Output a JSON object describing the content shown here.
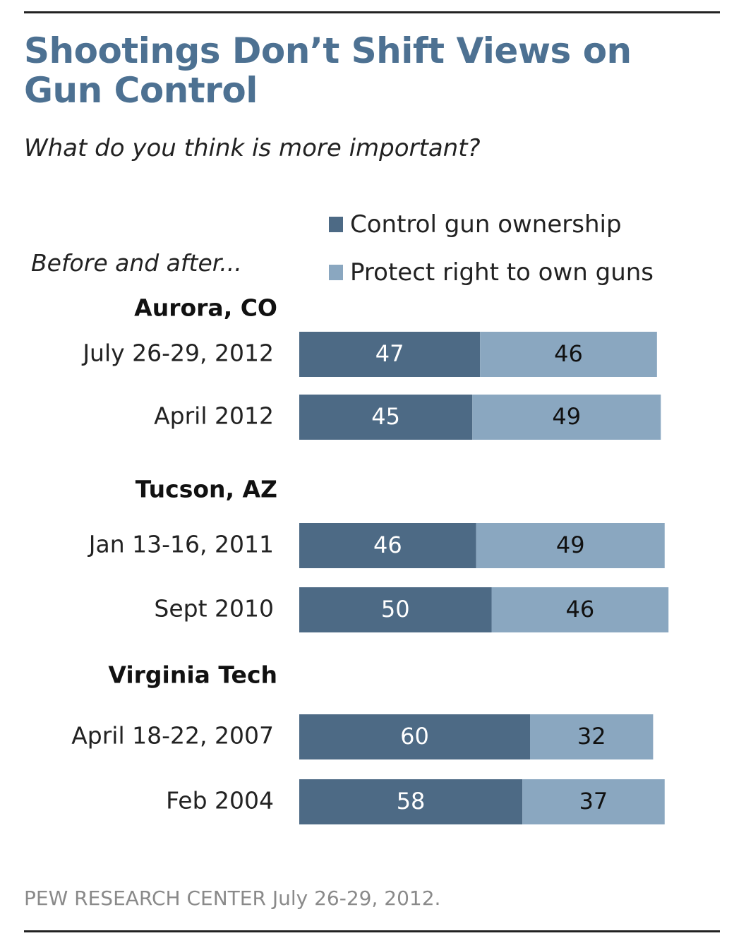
{
  "title": "Shootings Don’t Shift Views on Gun Control",
  "subtitle": "What do you think is more important?",
  "before_label": "Before and after...",
  "source": "PEW RESEARCH  CENTER July 26-29, 2012.",
  "colors": {
    "control": "#4d6a85",
    "protect": "#8aa7c0",
    "title": "#4d7192"
  },
  "chart_data": {
    "type": "bar",
    "orientation": "horizontal",
    "stacked": true,
    "legend": [
      {
        "name": "Control gun ownership",
        "color": "#4d6a85"
      },
      {
        "name": "Protect right to own guns",
        "color": "#8aa7c0"
      }
    ],
    "groups": [
      {
        "name": "Aurora, CO",
        "rows": [
          {
            "label": "July 26-29, 2012",
            "control": 47,
            "protect": 46
          },
          {
            "label": "April 2012",
            "control": 45,
            "protect": 49
          }
        ]
      },
      {
        "name": "Tucson, AZ",
        "rows": [
          {
            "label": "Jan 13-16, 2011",
            "control": 46,
            "protect": 49
          },
          {
            "label": "Sept 2010",
            "control": 50,
            "protect": 46
          }
        ]
      },
      {
        "name": "Virginia Tech",
        "rows": [
          {
            "label": "April 18-22, 2007",
            "control": 60,
            "protect": 32
          },
          {
            "label": "Feb 2004",
            "control": 58,
            "protect": 37
          }
        ]
      }
    ]
  }
}
